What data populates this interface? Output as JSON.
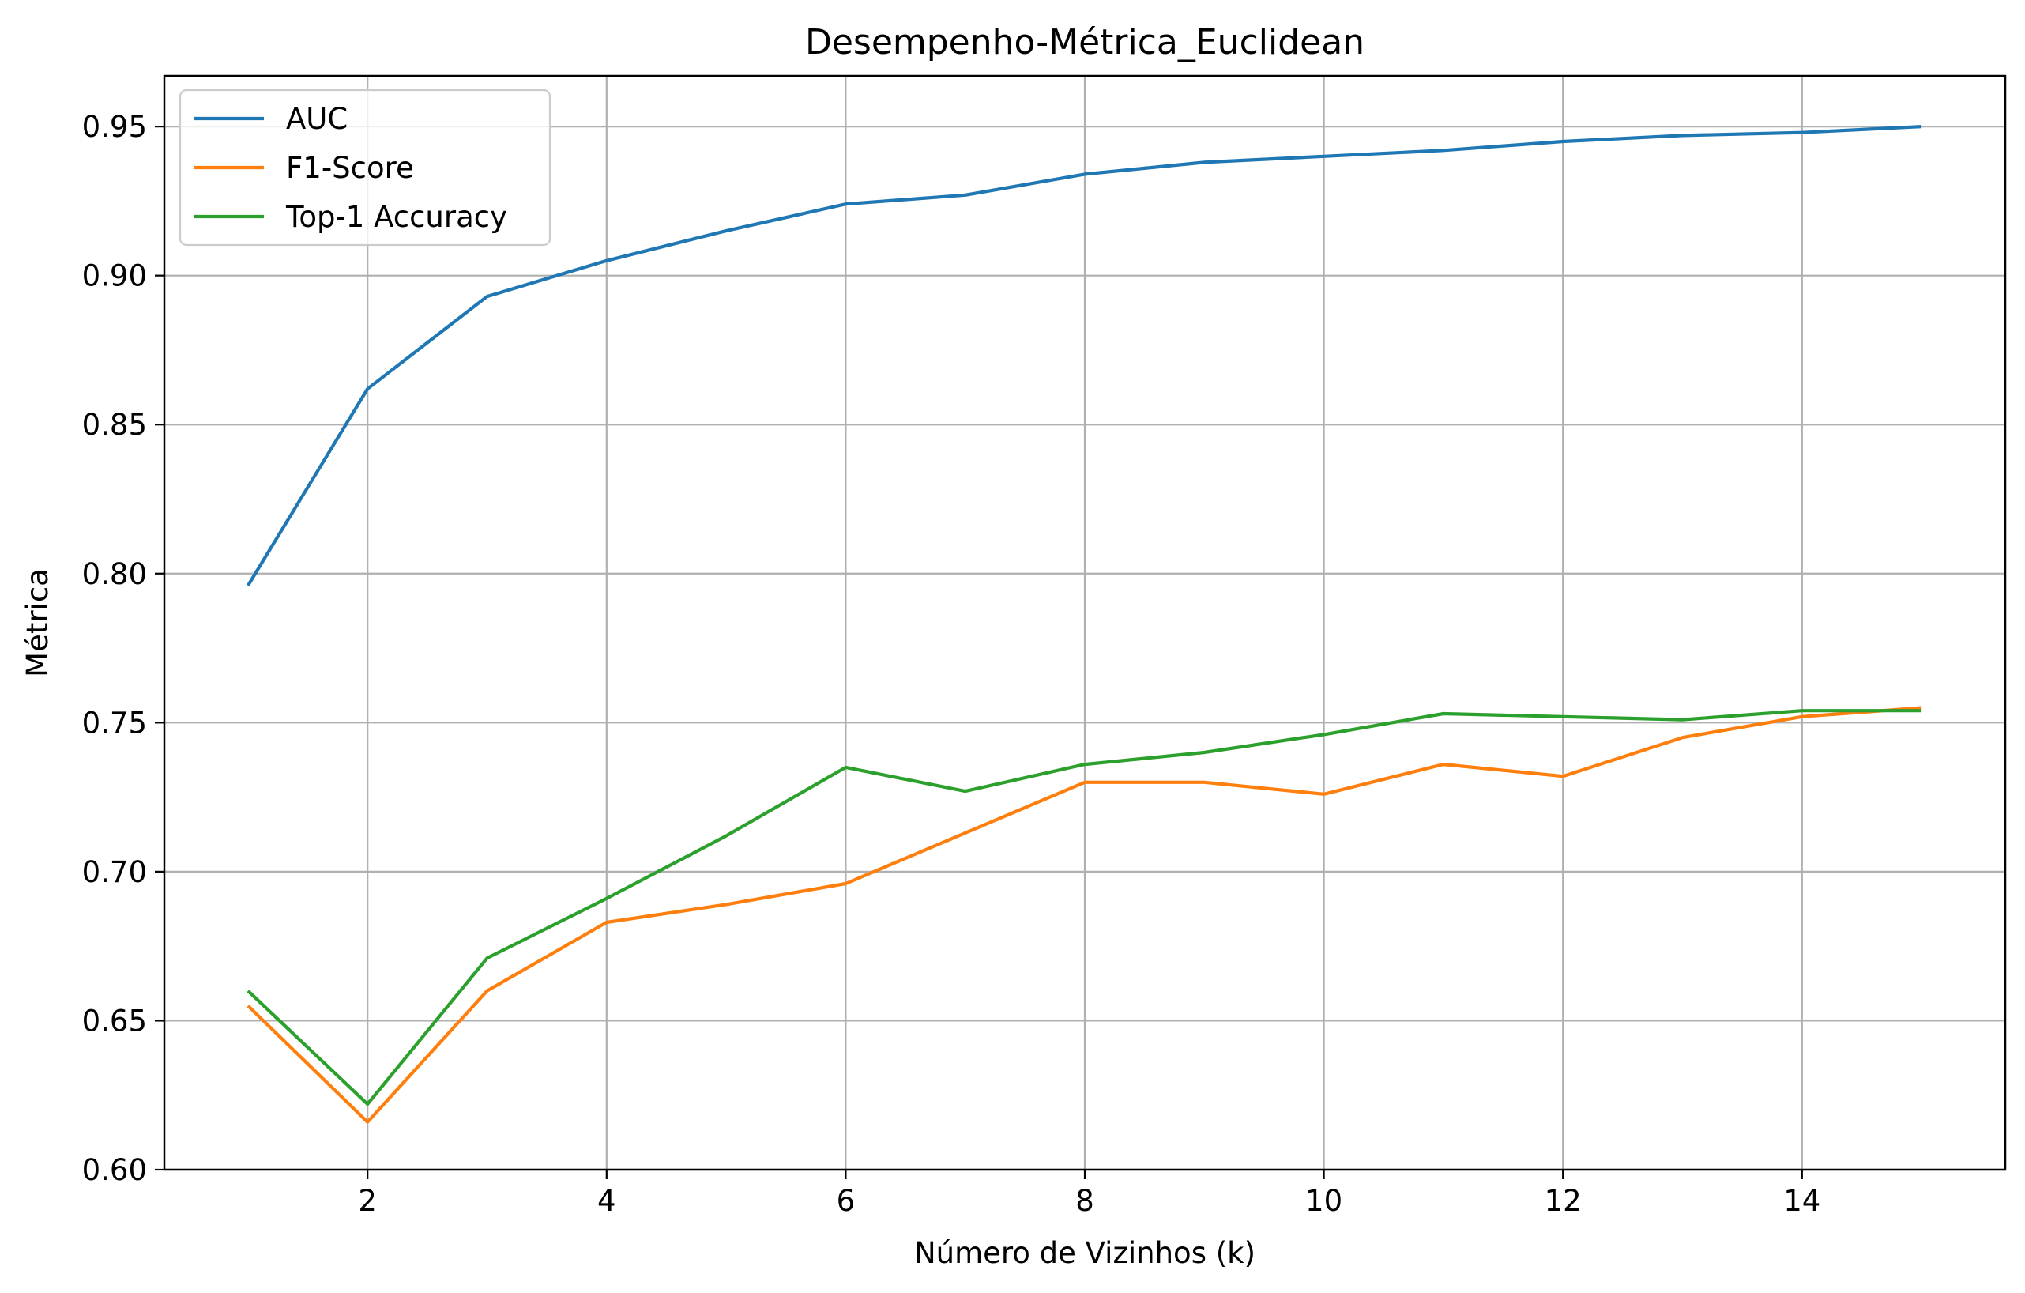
{
  "chart_data": {
    "type": "line",
    "title": "Desempenho-Métrica_Euclidean",
    "xlabel": "Número de Vizinhos (k)",
    "ylabel": "Métrica",
    "xlim": [
      0.3,
      15.7
    ],
    "ylim": [
      0.6,
      0.967
    ],
    "xticks": [
      2,
      4,
      6,
      8,
      10,
      12,
      14
    ],
    "xtick_labels": [
      "2",
      "4",
      "6",
      "8",
      "10",
      "12",
      "14"
    ],
    "yticks": [
      0.6,
      0.65,
      0.7,
      0.75,
      0.8,
      0.85,
      0.9,
      0.95
    ],
    "ytick_labels": [
      "0.60",
      "0.65",
      "0.70",
      "0.75",
      "0.80",
      "0.85",
      "0.90",
      "0.95"
    ],
    "grid": true,
    "legend_position": "top-left",
    "x": [
      1,
      2,
      3,
      4,
      5,
      6,
      7,
      8,
      9,
      10,
      11,
      12,
      13,
      14,
      15
    ],
    "series": [
      {
        "name": "AUC",
        "color": "#1f77b4",
        "values": [
          0.796,
          0.862,
          0.893,
          0.905,
          0.915,
          0.924,
          0.927,
          0.934,
          0.938,
          0.94,
          0.942,
          0.945,
          0.947,
          0.948,
          0.95
        ]
      },
      {
        "name": "F1-Score",
        "color": "#ff7f0e",
        "values": [
          0.655,
          0.616,
          0.66,
          0.683,
          0.689,
          0.696,
          0.713,
          0.73,
          0.73,
          0.726,
          0.736,
          0.732,
          0.745,
          0.752,
          0.755
        ]
      },
      {
        "name": "Top-1 Accuracy",
        "color": "#2ca02c",
        "values": [
          0.66,
          0.622,
          0.671,
          0.691,
          0.712,
          0.735,
          0.727,
          0.736,
          0.74,
          0.746,
          0.753,
          0.752,
          0.751,
          0.754,
          0.754
        ]
      }
    ]
  }
}
